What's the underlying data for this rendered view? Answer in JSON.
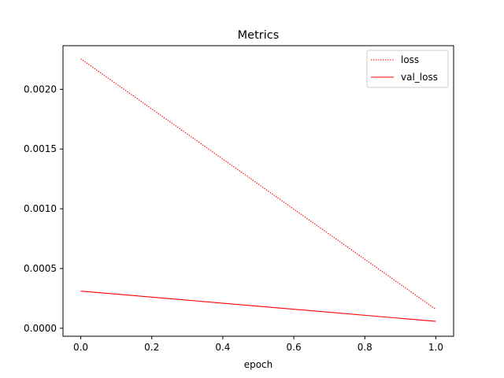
{
  "chart_data": {
    "type": "line",
    "title": "Metrics",
    "xlabel": "epoch",
    "ylabel": "",
    "xlim": [
      -0.05,
      1.05
    ],
    "ylim": [
      -6.7e-05,
      0.002365
    ],
    "xticks": [
      0.0,
      0.2,
      0.4,
      0.6,
      0.8,
      1.0
    ],
    "xtick_labels": [
      "0.0",
      "0.2",
      "0.4",
      "0.6",
      "0.8",
      "1.0"
    ],
    "yticks": [
      0.0,
      0.0005,
      0.001,
      0.0015,
      0.002
    ],
    "ytick_labels": [
      "0.0000",
      "0.0005",
      "0.0010",
      "0.0015",
      "0.0020"
    ],
    "grid": false,
    "legend_position": "top-right",
    "series": [
      {
        "name": "loss",
        "x": [
          0,
          1
        ],
        "values": [
          0.002255,
          0.000158
        ],
        "color": "#ff0000",
        "style": "dotted"
      },
      {
        "name": "val_loss",
        "x": [
          0,
          1
        ],
        "values": [
          0.000311,
          5.8e-05
        ],
        "color": "#ff0000",
        "style": "solid"
      }
    ]
  }
}
